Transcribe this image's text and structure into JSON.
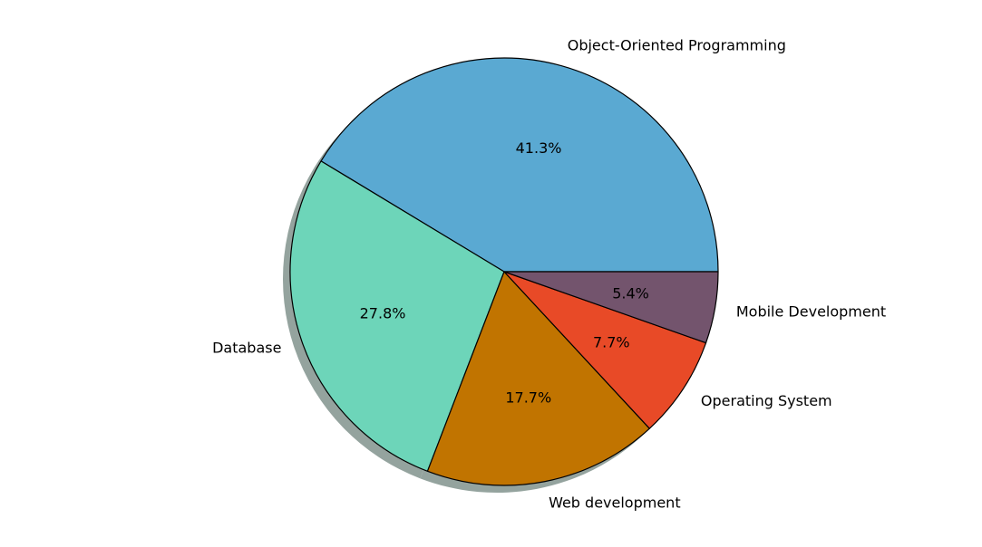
{
  "chart_data": {
    "type": "pie",
    "title": "",
    "start_angle_deg": 0,
    "direction": "counterclockwise",
    "shadow": true,
    "slices": [
      {
        "label": "Object-Oriented Programming",
        "value": 41.3,
        "pct_label": "41.3%",
        "color": "#5aa9d2"
      },
      {
        "label": "Database",
        "value": 27.8,
        "pct_label": "27.8%",
        "color": "#6dd5b9"
      },
      {
        "label": "Web development",
        "value": 17.7,
        "pct_label": "17.7%",
        "color": "#c17400"
      },
      {
        "label": "Operating System",
        "value": 7.7,
        "pct_label": "7.7%",
        "color": "#e84a27"
      },
      {
        "label": "Mobile Development",
        "value": 5.4,
        "pct_label": "5.4%",
        "color": "#73546d"
      }
    ],
    "edge_color": "#000000",
    "shadow_color": "#94a39e"
  }
}
